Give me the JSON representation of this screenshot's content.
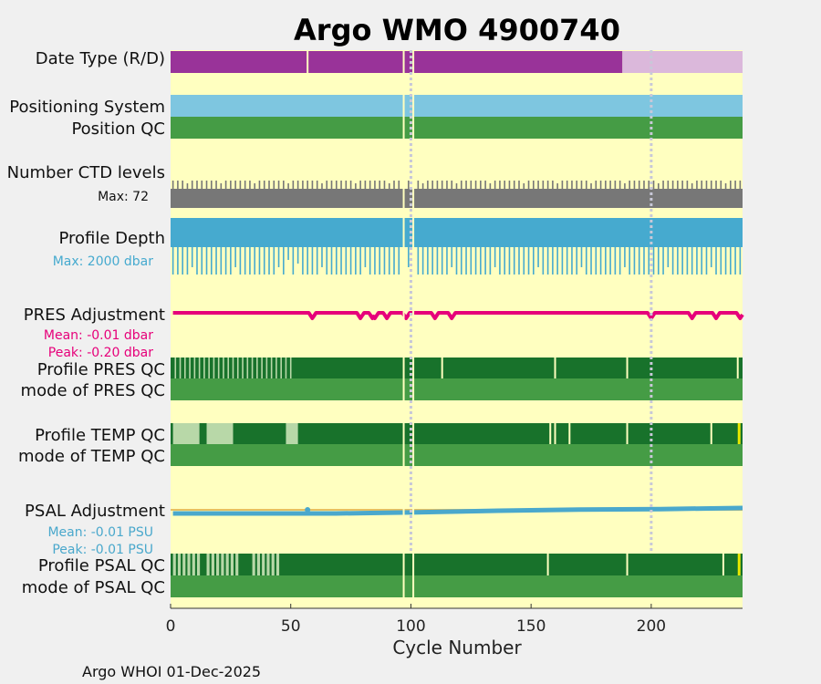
{
  "chart_data": {
    "type": "bar",
    "title": "Argo WMO 4900740",
    "xlabel": "Cycle Number",
    "xlim": [
      0,
      238
    ],
    "xticks": [
      "0",
      "50",
      "100",
      "150",
      "200"
    ],
    "xtick_values": [
      0,
      50,
      100,
      150,
      200
    ],
    "footer": "Argo WHOI 01-Dec-2025",
    "vertical_markers": [
      100,
      200
    ],
    "rows": {
      "date_type": {
        "label": "Date Type (R/D)",
        "realtime_range": [
          0,
          188
        ],
        "delayed_range": [
          188,
          238
        ],
        "gaps": [
          57,
          97,
          101
        ]
      },
      "positioning": {
        "label": "Positioning System",
        "gaps": [
          97,
          101
        ]
      },
      "position_qc": {
        "label": "Position QC",
        "gaps": [
          97,
          101
        ]
      },
      "ctd_levels": {
        "label": "Number CTD levels",
        "max_label": "Max: 72",
        "max": 72
      },
      "profile_depth": {
        "label": "Profile Depth",
        "max_label": "Max: 2000 dbar",
        "max": 2000
      },
      "pres_adjustment": {
        "label": "PRES Adjustment",
        "mean_label": "Mean: -0.01 dbar",
        "peak_label": "Peak: -0.20 dbar",
        "dips": [
          59,
          79,
          84,
          85,
          90,
          98,
          110,
          117,
          200,
          217,
          227,
          237
        ]
      },
      "profile_pres_qc": {
        "label": "Profile PRES QC",
        "light_cycles_until": 51,
        "gaps": [
          97,
          101,
          113,
          160,
          190,
          236
        ]
      },
      "mode_pres_qc": {
        "label": "mode of PRES QC"
      },
      "profile_temp_qc": {
        "label": "Profile TEMP QC",
        "light_ranges": [
          [
            1,
            12
          ],
          [
            15,
            26
          ],
          [
            48,
            53
          ]
        ],
        "gaps": [
          97,
          101,
          158,
          160,
          166,
          190,
          225
        ]
      },
      "mode_temp_qc": {
        "label": "mode of TEMP QC"
      },
      "psal_adjustment": {
        "label": "PSAL Adjustment",
        "mean_label": "Mean: -0.01 PSU",
        "peak_label": "Peak: -0.01 PSU",
        "values": [
          -0.01,
          -0.01,
          -0.01,
          -0.008,
          -0.005,
          -0.003,
          -0.002,
          0.0
        ]
      },
      "profile_psal_qc": {
        "label": "Profile PSAL QC",
        "light_ranges": [
          [
            1,
            12
          ],
          [
            15,
            29
          ],
          [
            34,
            45
          ]
        ],
        "gaps": [
          97,
          101,
          157,
          190,
          230
        ]
      },
      "mode_psal_qc": {
        "label": "mode of PSAL QC"
      }
    },
    "colors": {
      "plot_bg": "#ffffc0",
      "realtime": "#993399",
      "delayed": "#dbb8db",
      "positioning": "#7ec6e0",
      "qc_good": "#459c45",
      "qc_profile_dark": "#18722b",
      "qc_light": "#b8d8a8",
      "ctd": "#777777",
      "depth": "#46aacf",
      "pres_adj": "#e6007a",
      "psal_adj": "#4aa8cc",
      "title": "#0f8cba",
      "marker": "#c8c8d8"
    }
  }
}
